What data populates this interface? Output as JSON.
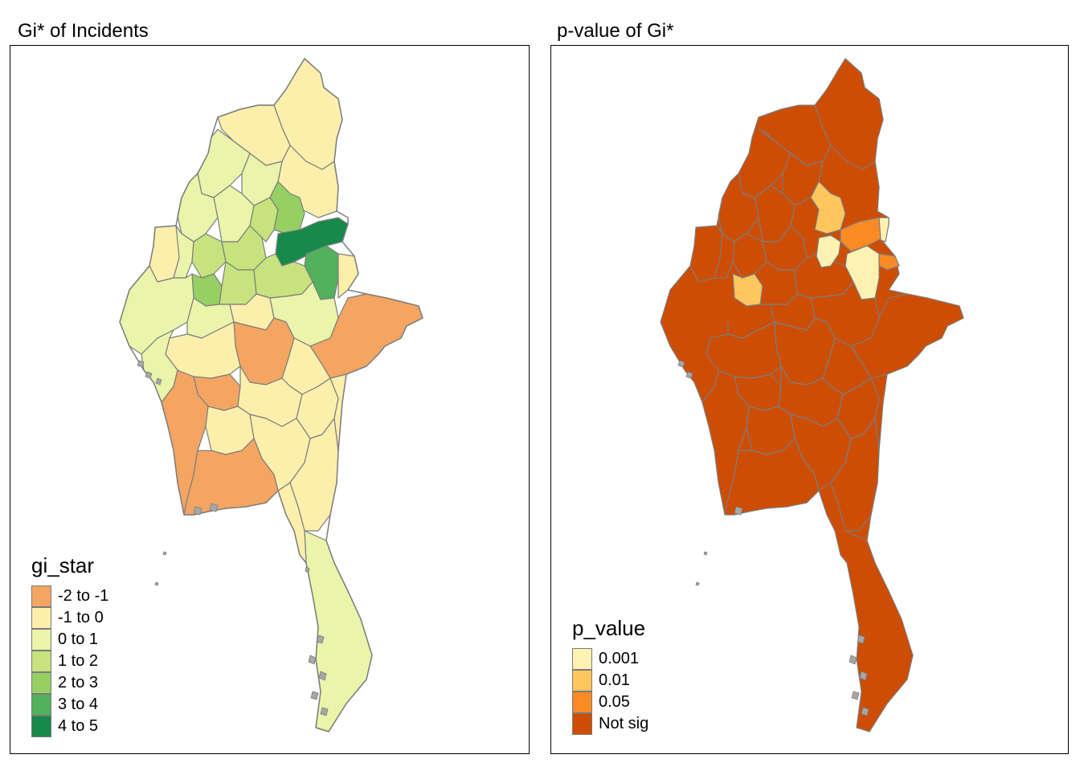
{
  "maps": [
    {
      "title": "Gi* of Incidents",
      "legend_title": "gi_star",
      "legend": [
        {
          "label": "-2 to -1",
          "color": "#f4a562"
        },
        {
          "label": "-1 to 0",
          "color": "#fcefac"
        },
        {
          "label": "0 to 1",
          "color": "#eaf4aa"
        },
        {
          "label": "1 to 2",
          "color": "#c6e37d"
        },
        {
          "label": "2 to 3",
          "color": "#96d063"
        },
        {
          "label": "3 to 4",
          "color": "#52b15c"
        },
        {
          "label": "4 to 5",
          "color": "#16894b"
        }
      ]
    },
    {
      "title": "p-value of Gi*",
      "legend_title": "p_value",
      "legend": [
        {
          "label": "0.001",
          "color": "#fff1b2"
        },
        {
          "label": "0.01",
          "color": "#fec75e"
        },
        {
          "label": "0.05",
          "color": "#f98a24"
        },
        {
          "label": "Not sig",
          "color": "#cd4d04"
        }
      ]
    }
  ]
}
